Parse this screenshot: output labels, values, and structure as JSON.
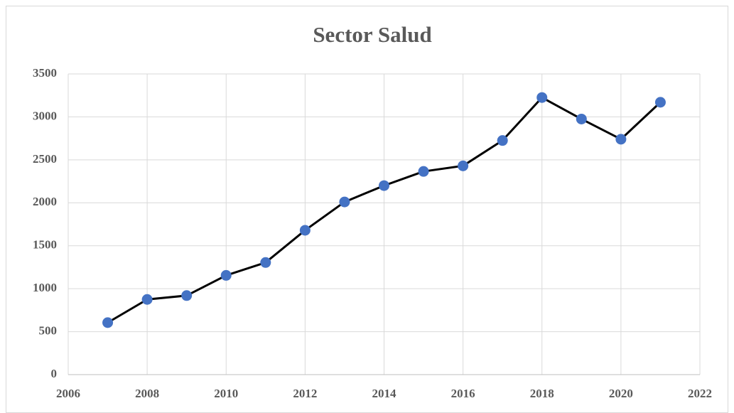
{
  "chart_data": {
    "type": "line",
    "title": "Sector Salud",
    "x": [
      2007,
      2008,
      2009,
      2010,
      2011,
      2012,
      2013,
      2014,
      2015,
      2016,
      2017,
      2018,
      2019,
      2020,
      2021
    ],
    "values": [
      605,
      875,
      920,
      1155,
      1305,
      1680,
      2010,
      2200,
      2365,
      2430,
      2725,
      3225,
      2975,
      2740,
      3170
    ],
    "color": "#000000",
    "marker_color": "#4472c4",
    "xlim": [
      2006,
      2022
    ],
    "xticks": [
      2006,
      2008,
      2010,
      2012,
      2014,
      2016,
      2018,
      2020,
      2022
    ],
    "ylim": [
      0,
      3500
    ],
    "yticks": [
      0,
      500,
      1000,
      1500,
      2000,
      2500,
      3000,
      3500
    ],
    "grid": true
  }
}
